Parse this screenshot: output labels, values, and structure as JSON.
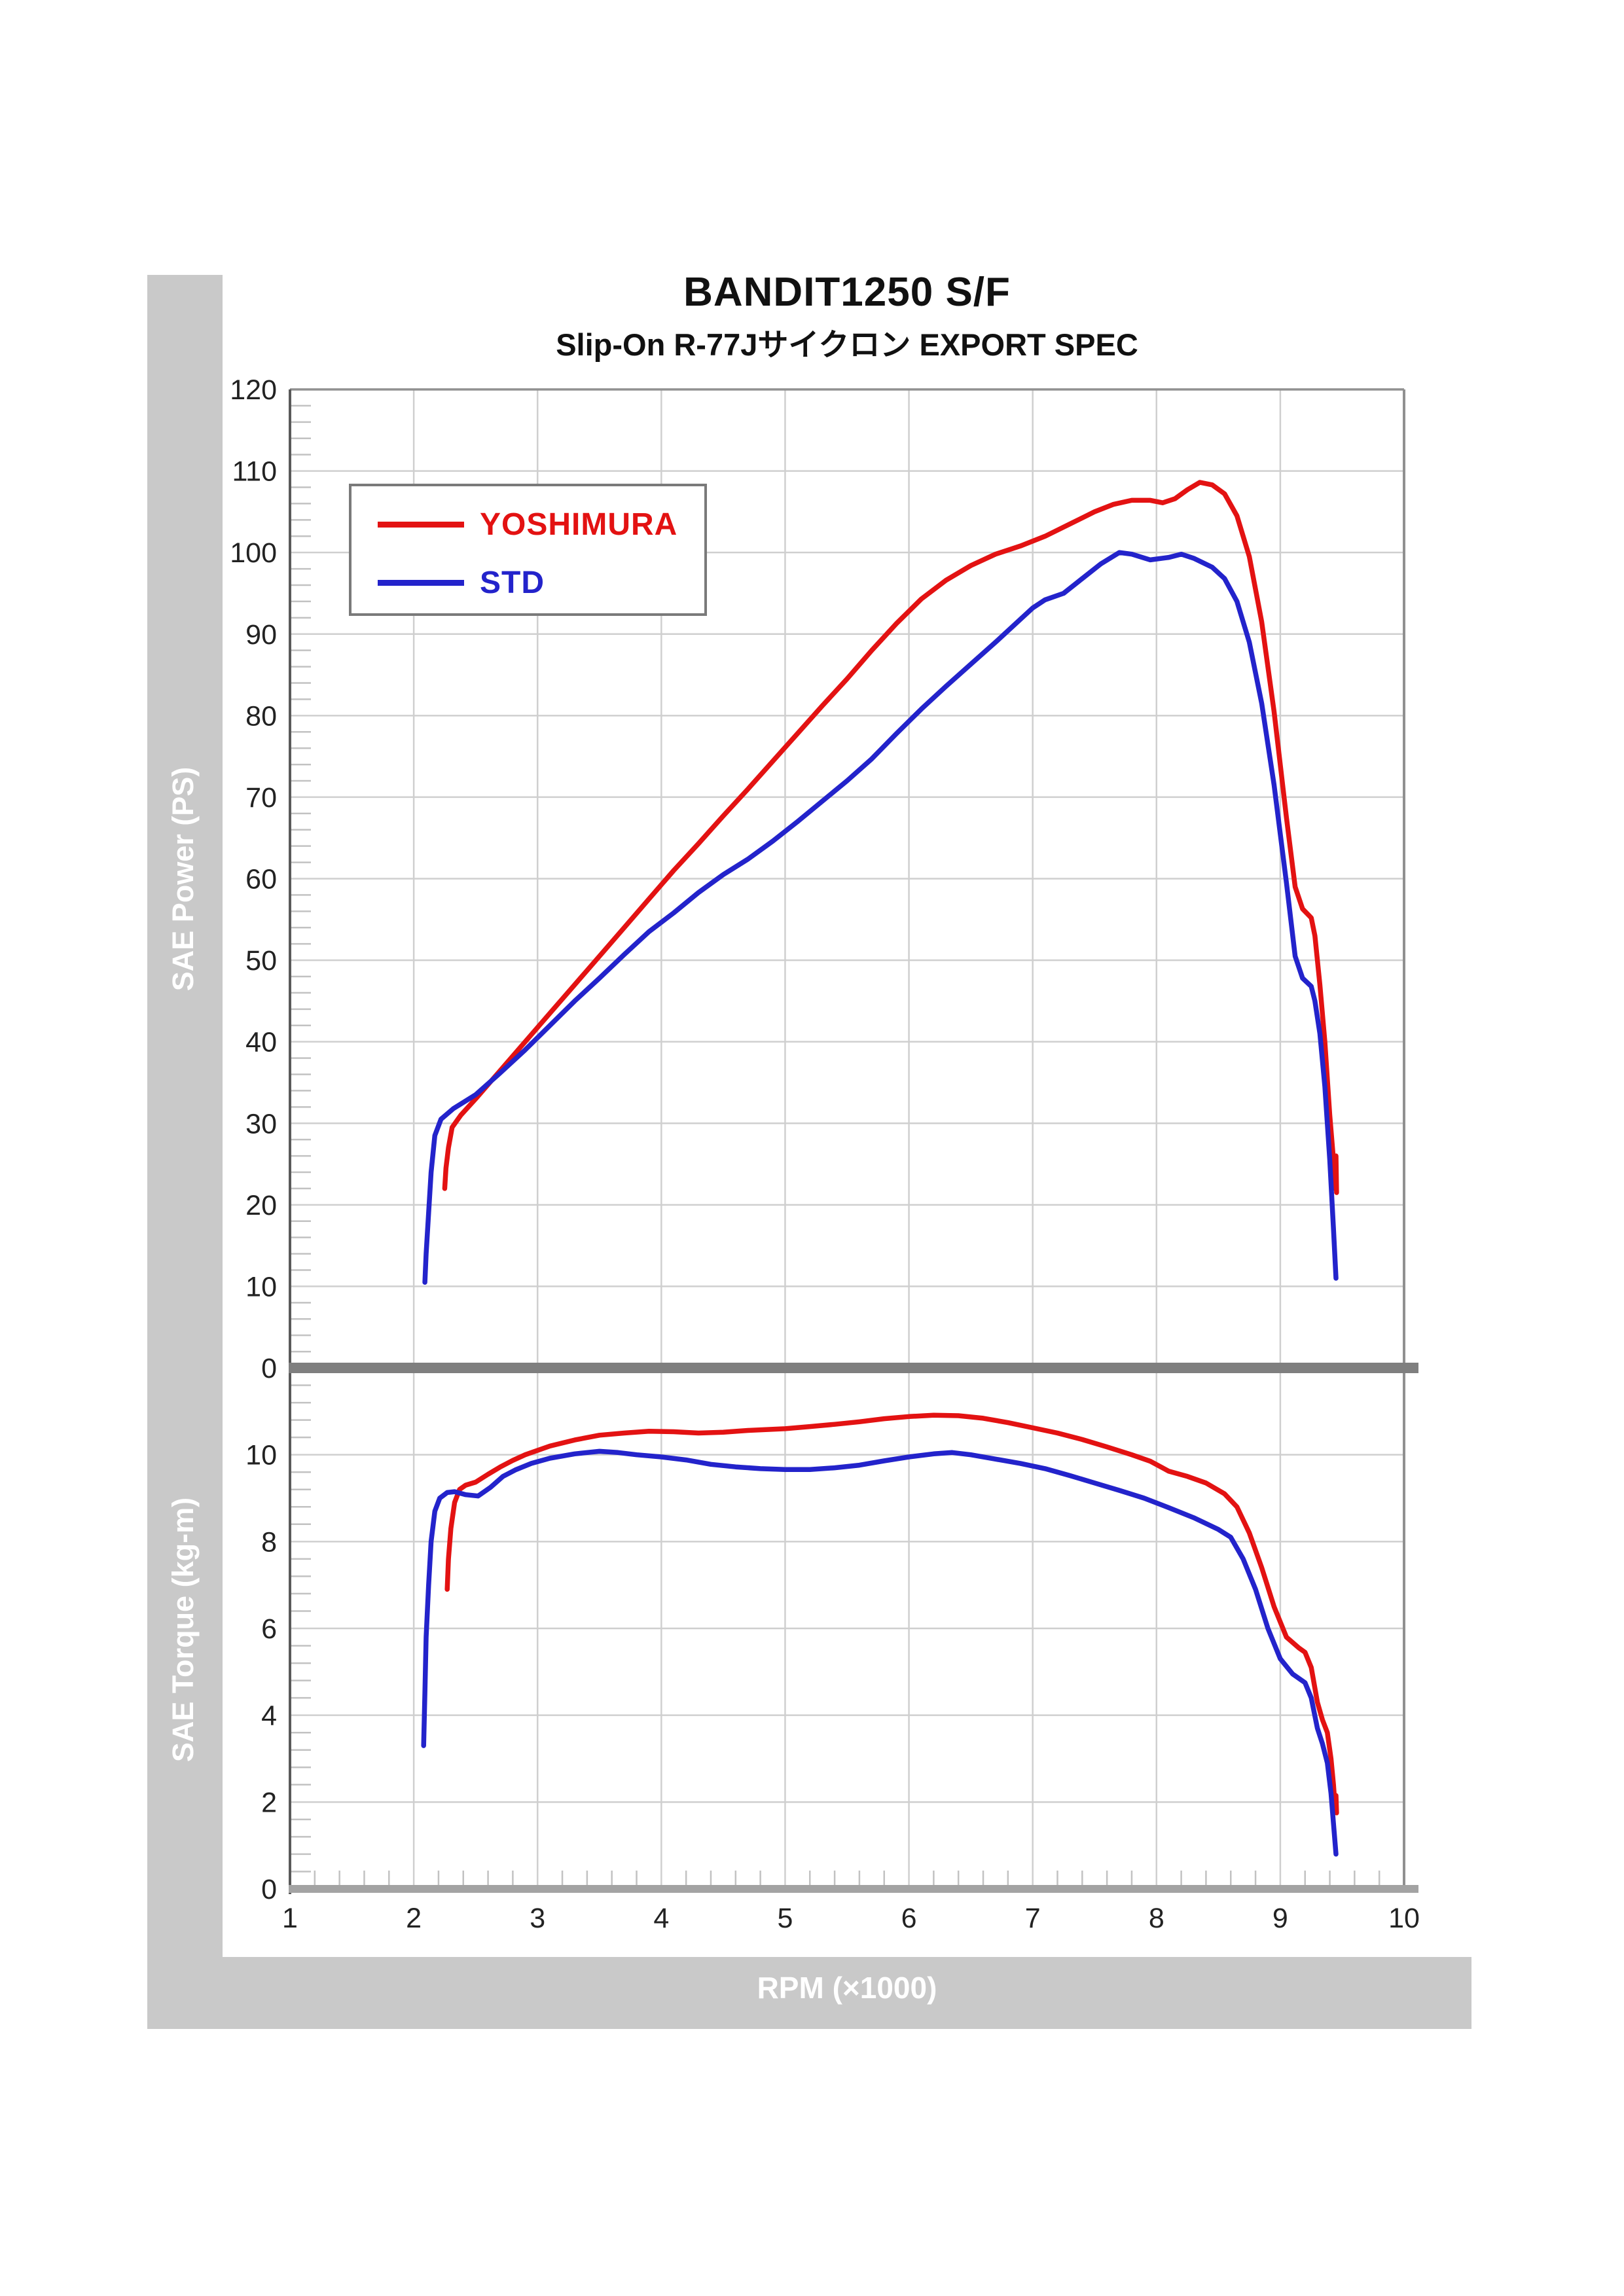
{
  "title": "BANDIT1250 S/F",
  "subtitle": "Slip-On R-77Jサイクロン EXPORT SPEC",
  "colors": {
    "yoshimura": "#e31212",
    "std": "#2323cb",
    "sidebar": "#c9c9c9",
    "grid": "#cfcfcf",
    "minor_tick": "#c2c2c2",
    "axis_line": "#5a5a5a",
    "border": "#909090",
    "separator": "#7f7f7f",
    "bottom_axis": "#a3a3a3",
    "tick_label": "#222222"
  },
  "legend": {
    "items": [
      {
        "label": "YOSHIMURA",
        "color": "#e31212"
      },
      {
        "label": "STD",
        "color": "#2323cb"
      }
    ]
  },
  "axes": {
    "x": {
      "label": "RPM (×1000)",
      "min": 1,
      "max": 10,
      "major": 1,
      "minor": 0.2,
      "ticks": [
        1,
        2,
        3,
        4,
        5,
        6,
        7,
        8,
        9,
        10
      ]
    },
    "power": {
      "label": "SAE Power (PS)",
      "min": 0,
      "max": 120,
      "major": 10,
      "minor": 2,
      "ticks": [
        0,
        10,
        20,
        30,
        40,
        50,
        60,
        70,
        80,
        90,
        100,
        110,
        120
      ]
    },
    "torque": {
      "label": "SAE Torque (kg-m)",
      "min": 0,
      "max": 12,
      "major": 2,
      "minor": 0.4,
      "ticks": [
        0,
        2,
        4,
        6,
        8,
        10
      ]
    }
  },
  "chart_data": [
    {
      "type": "line",
      "title": "SAE Power vs RPM",
      "xlabel": "RPM (×1000)",
      "ylabel": "SAE Power (PS)",
      "xlim": [
        1,
        10
      ],
      "ylim": [
        0,
        120
      ],
      "grid": true,
      "series": [
        {
          "name": "YOSHIMURA",
          "color": "#e31212",
          "points": [
            [
              2.25,
              22
            ],
            [
              2.26,
              24.5
            ],
            [
              2.28,
              27
            ],
            [
              2.31,
              29.5
            ],
            [
              2.38,
              31
            ],
            [
              2.5,
              33
            ],
            [
              2.7,
              36.5
            ],
            [
              2.9,
              40
            ],
            [
              3.1,
              43.5
            ],
            [
              3.3,
              47
            ],
            [
              3.5,
              50.5
            ],
            [
              3.7,
              54
            ],
            [
              3.9,
              57.5
            ],
            [
              4.1,
              61
            ],
            [
              4.3,
              64.3
            ],
            [
              4.5,
              67.7
            ],
            [
              4.7,
              71
            ],
            [
              4.9,
              74.4
            ],
            [
              5.1,
              77.8
            ],
            [
              5.3,
              81.2
            ],
            [
              5.5,
              84.5
            ],
            [
              5.7,
              88
            ],
            [
              5.9,
              91.3
            ],
            [
              6.1,
              94.3
            ],
            [
              6.3,
              96.6
            ],
            [
              6.5,
              98.4
            ],
            [
              6.7,
              99.8
            ],
            [
              6.9,
              100.8
            ],
            [
              7.1,
              102
            ],
            [
              7.3,
              103.5
            ],
            [
              7.5,
              105
            ],
            [
              7.65,
              105.9
            ],
            [
              7.8,
              106.4
            ],
            [
              7.95,
              106.4
            ],
            [
              8.05,
              106.1
            ],
            [
              8.15,
              106.6
            ],
            [
              8.25,
              107.7
            ],
            [
              8.35,
              108.6
            ],
            [
              8.45,
              108.3
            ],
            [
              8.55,
              107.2
            ],
            [
              8.65,
              104.5
            ],
            [
              8.75,
              99.5
            ],
            [
              8.85,
              91.5
            ],
            [
              8.95,
              80.5
            ],
            [
              9.05,
              67.5
            ],
            [
              9.12,
              59
            ],
            [
              9.18,
              56.3
            ],
            [
              9.25,
              55.2
            ],
            [
              9.28,
              53
            ],
            [
              9.32,
              47
            ],
            [
              9.36,
              40
            ],
            [
              9.4,
              31
            ],
            [
              9.43,
              25.5
            ],
            [
              9.44,
              22
            ],
            [
              9.45,
              26
            ],
            [
              9.455,
              21.5
            ]
          ]
        },
        {
          "name": "STD",
          "color": "#2323cb",
          "points": [
            [
              2.09,
              10.5
            ],
            [
              2.1,
              14
            ],
            [
              2.12,
              19
            ],
            [
              2.14,
              24
            ],
            [
              2.17,
              28.5
            ],
            [
              2.22,
              30.5
            ],
            [
              2.32,
              31.8
            ],
            [
              2.5,
              33.5
            ],
            [
              2.7,
              36.2
            ],
            [
              2.9,
              39
            ],
            [
              3.1,
              42
            ],
            [
              3.3,
              45
            ],
            [
              3.5,
              47.8
            ],
            [
              3.7,
              50.7
            ],
            [
              3.9,
              53.5
            ],
            [
              4.1,
              55.8
            ],
            [
              4.3,
              58.3
            ],
            [
              4.5,
              60.5
            ],
            [
              4.7,
              62.4
            ],
            [
              4.9,
              64.6
            ],
            [
              5.1,
              67
            ],
            [
              5.3,
              69.5
            ],
            [
              5.5,
              72
            ],
            [
              5.7,
              74.7
            ],
            [
              5.9,
              77.8
            ],
            [
              6.1,
              80.8
            ],
            [
              6.3,
              83.6
            ],
            [
              6.5,
              86.3
            ],
            [
              6.7,
              89
            ],
            [
              6.9,
              91.8
            ],
            [
              7.0,
              93.2
            ],
            [
              7.1,
              94.2
            ],
            [
              7.25,
              95
            ],
            [
              7.4,
              96.8
            ],
            [
              7.55,
              98.6
            ],
            [
              7.7,
              100
            ],
            [
              7.8,
              99.8
            ],
            [
              7.95,
              99.1
            ],
            [
              8.1,
              99.4
            ],
            [
              8.2,
              99.8
            ],
            [
              8.3,
              99.3
            ],
            [
              8.45,
              98.2
            ],
            [
              8.55,
              96.8
            ],
            [
              8.65,
              94
            ],
            [
              8.75,
              89
            ],
            [
              8.85,
              81.5
            ],
            [
              8.95,
              71.5
            ],
            [
              9.05,
              59.5
            ],
            [
              9.12,
              50.5
            ],
            [
              9.18,
              47.8
            ],
            [
              9.25,
              46.8
            ],
            [
              9.28,
              45
            ],
            [
              9.32,
              41
            ],
            [
              9.36,
              34.5
            ],
            [
              9.4,
              25.5
            ],
            [
              9.43,
              17
            ],
            [
              9.45,
              11
            ]
          ]
        }
      ]
    },
    {
      "type": "line",
      "title": "SAE Torque vs RPM",
      "xlabel": "RPM (×1000)",
      "ylabel": "SAE Torque (kg-m)",
      "xlim": [
        1,
        10
      ],
      "ylim": [
        0,
        12
      ],
      "grid": true,
      "series": [
        {
          "name": "YOSHIMURA",
          "color": "#e31212",
          "points": [
            [
              2.27,
              6.9
            ],
            [
              2.28,
              7.6
            ],
            [
              2.3,
              8.3
            ],
            [
              2.33,
              8.9
            ],
            [
              2.37,
              9.2
            ],
            [
              2.42,
              9.3
            ],
            [
              2.5,
              9.37
            ],
            [
              2.6,
              9.55
            ],
            [
              2.7,
              9.72
            ],
            [
              2.8,
              9.87
            ],
            [
              2.9,
              10.0
            ],
            [
              3.1,
              10.2
            ],
            [
              3.3,
              10.34
            ],
            [
              3.5,
              10.45
            ],
            [
              3.7,
              10.5
            ],
            [
              3.9,
              10.54
            ],
            [
              4.1,
              10.53
            ],
            [
              4.3,
              10.5
            ],
            [
              4.5,
              10.52
            ],
            [
              4.7,
              10.56
            ],
            [
              5.0,
              10.6
            ],
            [
              5.2,
              10.65
            ],
            [
              5.4,
              10.7
            ],
            [
              5.6,
              10.76
            ],
            [
              5.8,
              10.83
            ],
            [
              6.0,
              10.88
            ],
            [
              6.2,
              10.91
            ],
            [
              6.4,
              10.9
            ],
            [
              6.6,
              10.84
            ],
            [
              6.8,
              10.74
            ],
            [
              7.0,
              10.62
            ],
            [
              7.2,
              10.5
            ],
            [
              7.4,
              10.35
            ],
            [
              7.6,
              10.18
            ],
            [
              7.8,
              10.0
            ],
            [
              7.95,
              9.85
            ],
            [
              8.1,
              9.62
            ],
            [
              8.25,
              9.5
            ],
            [
              8.4,
              9.35
            ],
            [
              8.55,
              9.1
            ],
            [
              8.65,
              8.8
            ],
            [
              8.75,
              8.2
            ],
            [
              8.85,
              7.4
            ],
            [
              8.95,
              6.5
            ],
            [
              9.05,
              5.8
            ],
            [
              9.15,
              5.55
            ],
            [
              9.2,
              5.45
            ],
            [
              9.25,
              5.1
            ],
            [
              9.3,
              4.3
            ],
            [
              9.34,
              3.9
            ],
            [
              9.38,
              3.6
            ],
            [
              9.41,
              3.0
            ],
            [
              9.43,
              2.4
            ],
            [
              9.445,
              1.8
            ],
            [
              9.45,
              2.15
            ],
            [
              9.455,
              1.75
            ]
          ]
        },
        {
          "name": "STD",
          "color": "#2323cb",
          "points": [
            [
              2.08,
              3.3
            ],
            [
              2.09,
              4.5
            ],
            [
              2.1,
              5.8
            ],
            [
              2.12,
              7.0
            ],
            [
              2.14,
              8.0
            ],
            [
              2.17,
              8.7
            ],
            [
              2.21,
              9.0
            ],
            [
              2.27,
              9.13
            ],
            [
              2.33,
              9.15
            ],
            [
              2.42,
              9.08
            ],
            [
              2.52,
              9.05
            ],
            [
              2.62,
              9.25
            ],
            [
              2.72,
              9.5
            ],
            [
              2.82,
              9.65
            ],
            [
              2.95,
              9.8
            ],
            [
              3.1,
              9.92
            ],
            [
              3.3,
              10.02
            ],
            [
              3.5,
              10.08
            ],
            [
              3.65,
              10.05
            ],
            [
              3.8,
              10.0
            ],
            [
              4.0,
              9.95
            ],
            [
              4.2,
              9.88
            ],
            [
              4.4,
              9.78
            ],
            [
              4.6,
              9.72
            ],
            [
              4.8,
              9.68
            ],
            [
              5.0,
              9.66
            ],
            [
              5.2,
              9.66
            ],
            [
              5.4,
              9.7
            ],
            [
              5.6,
              9.76
            ],
            [
              5.8,
              9.86
            ],
            [
              6.0,
              9.95
            ],
            [
              6.2,
              10.02
            ],
            [
              6.35,
              10.05
            ],
            [
              6.5,
              10.0
            ],
            [
              6.7,
              9.9
            ],
            [
              6.9,
              9.8
            ],
            [
              7.1,
              9.68
            ],
            [
              7.3,
              9.52
            ],
            [
              7.5,
              9.35
            ],
            [
              7.7,
              9.18
            ],
            [
              7.9,
              9.0
            ],
            [
              8.1,
              8.78
            ],
            [
              8.3,
              8.55
            ],
            [
              8.5,
              8.28
            ],
            [
              8.6,
              8.1
            ],
            [
              8.7,
              7.6
            ],
            [
              8.8,
              6.9
            ],
            [
              8.9,
              6.0
            ],
            [
              9.0,
              5.3
            ],
            [
              9.1,
              4.95
            ],
            [
              9.2,
              4.75
            ],
            [
              9.25,
              4.4
            ],
            [
              9.3,
              3.7
            ],
            [
              9.34,
              3.35
            ],
            [
              9.38,
              2.9
            ],
            [
              9.41,
              2.2
            ],
            [
              9.43,
              1.5
            ],
            [
              9.45,
              0.8
            ]
          ]
        }
      ]
    }
  ]
}
